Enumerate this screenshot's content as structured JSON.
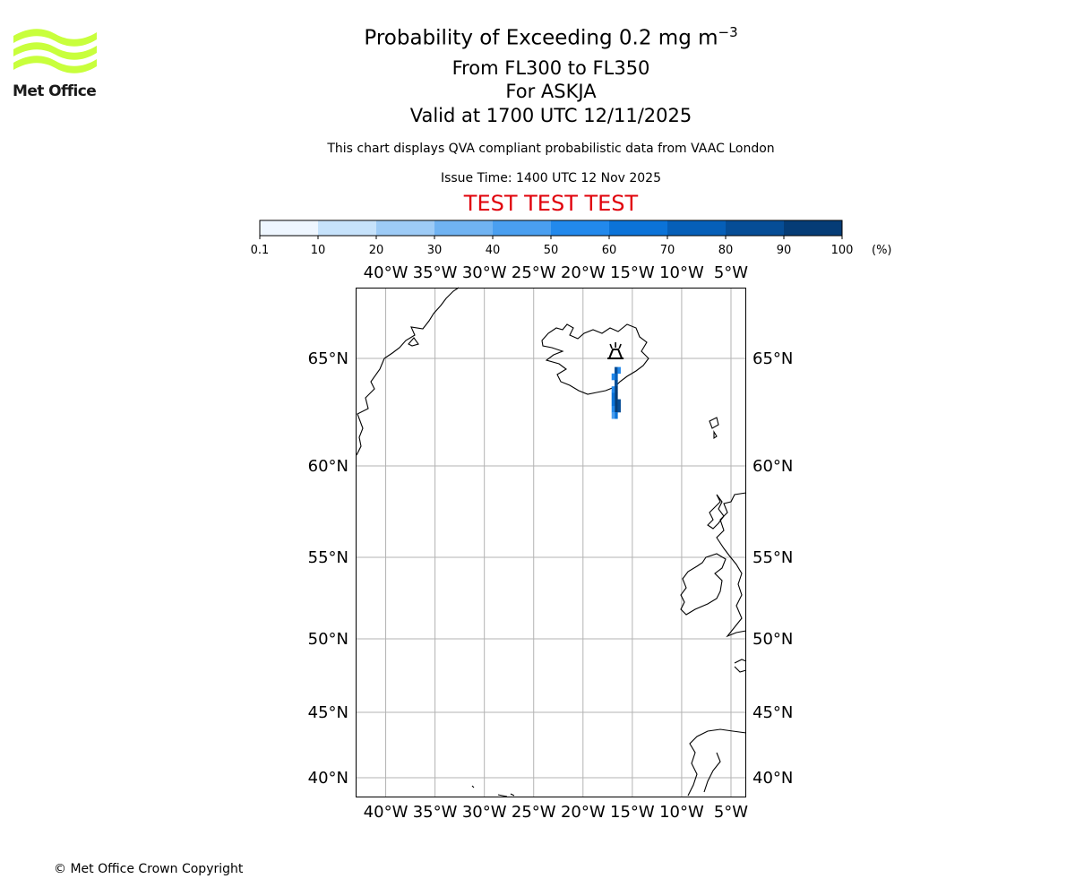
{
  "logo": {
    "text": "Met Office",
    "color": "#c8ff3c"
  },
  "header": {
    "title": "Probability of Exceeding 0.2 mg m",
    "title_superscript": "−3",
    "subtitle_levels": "From FL300 to FL350",
    "subtitle_volcano": "For ASKJA",
    "subtitle_valid": "Valid at 1700 UTC 12/11/2025",
    "description": "This chart displays QVA compliant probabilistic data from VAAC London",
    "issue_time": "Issue Time: 1400 UTC 12 Nov 2025",
    "test_banner": "TEST TEST TEST"
  },
  "colorbar": {
    "ticks": [
      "0.1",
      "10",
      "20",
      "30",
      "40",
      "50",
      "60",
      "70",
      "80",
      "90",
      "100"
    ],
    "unit": "(%)",
    "colors": [
      "#eef6ff",
      "#c6e2fb",
      "#9dcbf6",
      "#70b3f2",
      "#4a9ff0",
      "#2289ec",
      "#0b73d8",
      "#065fb8",
      "#064d96",
      "#053c76",
      "#032c56"
    ]
  },
  "chart_data": {
    "type": "map",
    "projection": "plate carree",
    "lon_range": [
      -43,
      -3.5
    ],
    "lat_range": [
      39,
      68.5
    ],
    "lon_ticks": [
      -40,
      -35,
      -30,
      -25,
      -20,
      -15,
      -10,
      -5
    ],
    "lon_tick_labels": [
      "40°W",
      "35°W",
      "30°W",
      "25°W",
      "20°W",
      "15°W",
      "10°W",
      "5°W"
    ],
    "lat_ticks": [
      65,
      60,
      55,
      50,
      45,
      40
    ],
    "lat_tick_labels": [
      "65°N",
      "60°N",
      "55°N",
      "50°N",
      "45°N",
      "40°N"
    ],
    "grid": true,
    "volcano": {
      "name": "ASKJA",
      "lon": -16.7,
      "lat": 65.0
    },
    "plume_cells": [
      {
        "lon": -16.65,
        "lat": 64.45,
        "pct": 72
      },
      {
        "lon": -16.65,
        "lat": 64.15,
        "pct": 66
      },
      {
        "lon": -16.65,
        "lat": 63.85,
        "pct": 74
      },
      {
        "lon": -16.65,
        "lat": 63.55,
        "pct": 80
      },
      {
        "lon": -16.65,
        "lat": 63.25,
        "pct": 84
      },
      {
        "lon": -16.65,
        "lat": 62.95,
        "pct": 88
      },
      {
        "lon": -16.35,
        "lat": 62.95,
        "pct": 72
      },
      {
        "lon": -16.65,
        "lat": 62.65,
        "pct": 84
      },
      {
        "lon": -16.35,
        "lat": 62.65,
        "pct": 70
      },
      {
        "lon": -16.95,
        "lat": 62.65,
        "pct": 44
      },
      {
        "lon": -16.65,
        "lat": 62.35,
        "pct": 52
      },
      {
        "lon": -16.95,
        "lat": 62.35,
        "pct": 34
      },
      {
        "lon": -16.95,
        "lat": 63.55,
        "pct": 48
      },
      {
        "lon": -16.95,
        "lat": 63.25,
        "pct": 58
      },
      {
        "lon": -16.95,
        "lat": 62.95,
        "pct": 56
      },
      {
        "lon": -16.95,
        "lat": 64.15,
        "pct": 46
      },
      {
        "lon": -16.35,
        "lat": 64.45,
        "pct": 40
      }
    ]
  },
  "footer": {
    "copyright": "© Met Office Crown Copyright"
  }
}
